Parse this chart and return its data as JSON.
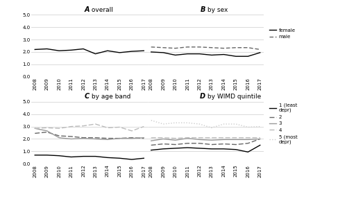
{
  "years": [
    2008,
    2009,
    2010,
    2011,
    2012,
    2013,
    2014,
    2015,
    2016,
    2017
  ],
  "overall": [
    2.2,
    2.25,
    2.1,
    2.15,
    2.25,
    1.85,
    2.1,
    1.95,
    2.05,
    2.1
  ],
  "female": [
    2.0,
    1.95,
    1.75,
    1.85,
    1.85,
    1.75,
    1.8,
    1.65,
    1.65,
    1.95
  ],
  "male": [
    2.4,
    2.35,
    2.3,
    2.4,
    2.4,
    2.35,
    2.3,
    2.35,
    2.35,
    2.2
  ],
  "age_11_14": [
    0.7,
    0.7,
    0.65,
    0.55,
    0.6,
    0.6,
    0.5,
    0.45,
    0.35,
    0.45
  ],
  "age_15_17": [
    2.45,
    2.55,
    2.25,
    2.2,
    2.1,
    2.1,
    2.05,
    2.05,
    2.1,
    2.05
  ],
  "age_18_21": [
    2.85,
    2.65,
    2.1,
    2.0,
    2.05,
    2.0,
    1.95,
    2.05,
    2.05,
    2.1
  ],
  "age_22_25": [
    2.85,
    2.9,
    2.85,
    3.0,
    3.05,
    3.2,
    2.9,
    2.95,
    2.65,
    3.0
  ],
  "wimd_1": [
    1.1,
    1.2,
    1.25,
    1.3,
    1.25,
    1.2,
    1.2,
    1.15,
    0.95,
    1.5
  ],
  "wimd_2": [
    1.5,
    1.6,
    1.55,
    1.65,
    1.65,
    1.55,
    1.6,
    1.55,
    1.65,
    2.0
  ],
  "wimd_3": [
    1.85,
    2.0,
    1.9,
    2.05,
    1.95,
    1.9,
    1.95,
    1.95,
    1.95,
    2.0
  ],
  "wimd_4": [
    2.1,
    2.1,
    2.05,
    2.1,
    2.1,
    2.1,
    2.1,
    2.1,
    2.1,
    2.1
  ],
  "wimd_5": [
    3.5,
    3.2,
    3.3,
    3.3,
    3.2,
    2.9,
    3.2,
    3.2,
    2.95,
    3.0
  ],
  "ylim": [
    0.0,
    5.0
  ],
  "yticks": [
    0.0,
    1.0,
    2.0,
    3.0,
    4.0,
    5.0
  ],
  "ytick_labels": [
    "0.0",
    "1.0",
    "2.0",
    "3.0",
    "4.0",
    "5.0"
  ],
  "color_black": "#000000",
  "color_dark_gray": "#666666",
  "color_mid_gray": "#999999",
  "color_light_gray": "#bbbbbb",
  "color_very_light_gray": "#cccccc",
  "title_A_bold": "A",
  "title_A_rest": " overall",
  "title_B_bold": "B",
  "title_B_rest": " by sex",
  "title_C_bold": "C",
  "title_C_rest": " by age band",
  "title_D_bold": "D",
  "title_D_rest": " by WIMD quintile"
}
